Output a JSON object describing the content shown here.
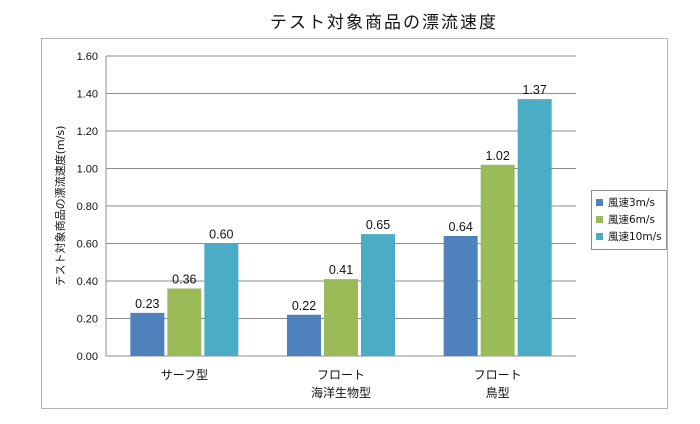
{
  "chart_data": {
    "type": "bar",
    "title": "テスト対象商品の漂流速度",
    "ylabel": "テスト対象商品の漂流速度(m/s)",
    "xlabel": "",
    "categories": [
      [
        "サーフ型"
      ],
      [
        "フロート",
        "海洋生物型"
      ],
      [
        "フロート",
        "鳥型"
      ]
    ],
    "series": [
      {
        "name": "風速3m/s",
        "color": "#4f81bd",
        "values": [
          0.23,
          0.22,
          0.64
        ],
        "labels": [
          "0.23",
          "0.22",
          "0.64"
        ]
      },
      {
        "name": "風速6m/s",
        "color": "#9bbb59",
        "values": [
          0.36,
          0.41,
          1.02
        ],
        "labels": [
          "0.36",
          "0.41",
          "1.02"
        ]
      },
      {
        "name": "風速10m/s",
        "color": "#4bacc6",
        "values": [
          0.6,
          0.65,
          1.37
        ],
        "labels": [
          "0.60",
          "0.65",
          "1.37"
        ]
      }
    ],
    "ylim": [
      0,
      1.6
    ],
    "yticks": [
      "0.00",
      "0.20",
      "0.40",
      "0.60",
      "0.80",
      "1.00",
      "1.20",
      "1.40",
      "1.60"
    ],
    "grid": true,
    "legend": "right"
  }
}
